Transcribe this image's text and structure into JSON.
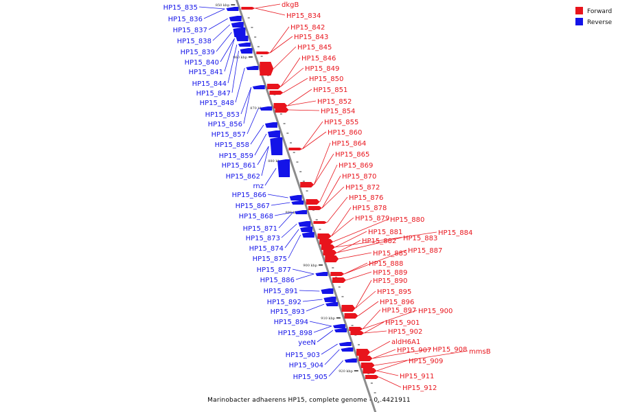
{
  "colors": {
    "forward": "#e8141c",
    "reverse": "#1414e8",
    "axis": "#8c8c8c"
  },
  "legend": [
    {
      "label": "Forward",
      "strand": "forward"
    },
    {
      "label": "Reverse",
      "strand": "reverse"
    }
  ],
  "caption": "Marinobacter adhaerens HP15, complete genome - 0..4421911",
  "ticks": [
    "850 kbp",
    "860 kbp",
    "870 kbp",
    "880 kbp",
    "890 kbp",
    "900 kbp",
    "910 kbp",
    "920 kbp"
  ],
  "reverse_genes": [
    "HP15_835",
    "HP15_836",
    "HP15_837",
    "HP15_838",
    "HP15_839",
    "HP15_840",
    "HP15_841",
    "HP15_844",
    "HP15_847",
    "HP15_848",
    "HP15_853",
    "HP15_856",
    "HP15_857",
    "HP15_858",
    "HP15_859",
    "HP15_861",
    "HP15_862",
    "rnz",
    "HP15_866",
    "HP15_867",
    "HP15_868",
    "HP15_871",
    "HP15_873",
    "HP15_874",
    "HP15_875",
    "HP15_877",
    "HP15_886",
    "HP15_891",
    "HP15_892",
    "HP15_893",
    "HP15_894",
    "HP15_898",
    "yeeN",
    "HP15_903",
    "HP15_904",
    "HP15_905"
  ],
  "forward_genes": [
    "dkgB",
    "HP15_834",
    "HP15_842",
    "HP15_843",
    "HP15_845",
    "HP15_846",
    "HP15_849",
    "HP15_850",
    "HP15_851",
    "HP15_852",
    "HP15_854",
    "HP15_855",
    "HP15_860",
    "HP15_864",
    "HP15_865",
    "HP15_869",
    "HP15_870",
    "HP15_872",
    "HP15_876",
    "HP15_878",
    "HP15_879",
    "HP15_880",
    "HP15_881",
    "HP15_884",
    "HP15_882",
    "HP15_883",
    "HP15_885",
    "HP15_887",
    "HP15_888",
    "HP15_889",
    "HP15_890",
    "HP15_895",
    "HP15_896",
    "HP15_897",
    "HP15_900",
    "HP15_901",
    "HP15_902",
    "aldH6A1",
    "HP15_907",
    "HP15_908",
    "mmsB",
    "HP15_909",
    "HP15_911",
    "HP15_912"
  ]
}
